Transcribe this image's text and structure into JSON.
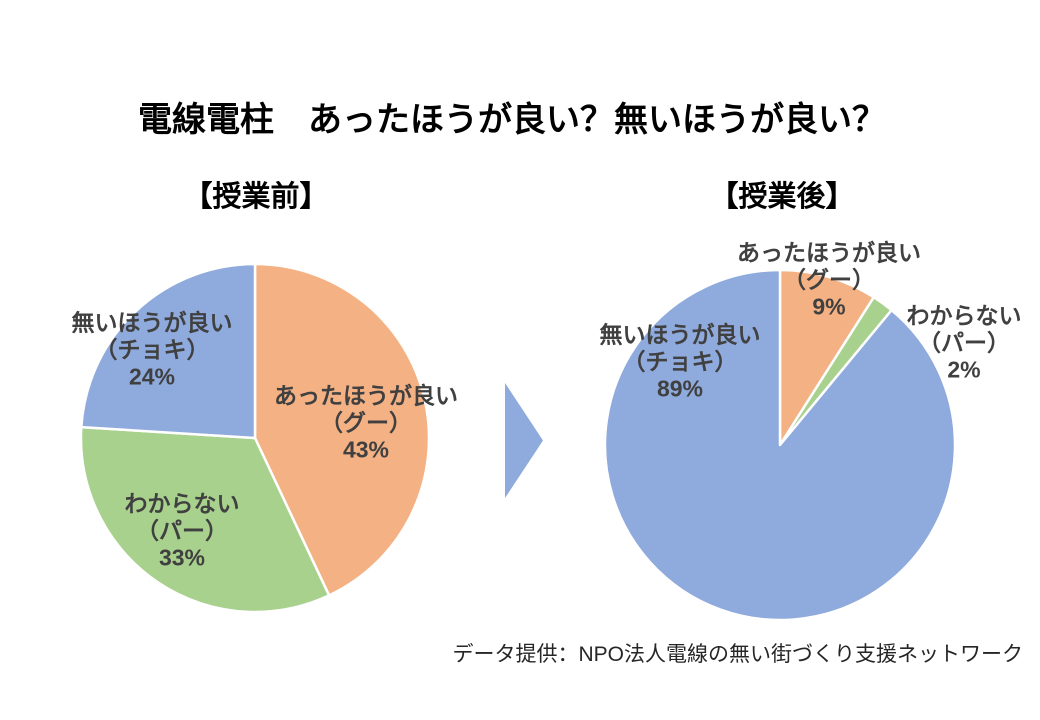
{
  "title": "電線電柱　あったほうが良い？無いほうが良い？",
  "source": "データ提供：NPO法人電線の無い街づくり支援ネットワーク",
  "arrow": {
    "color": "#8FAADC"
  },
  "chart_data": [
    {
      "type": "pie",
      "title": "【授業前】",
      "categories": [
        "あったほうが良い（グー）",
        "わからない（パー）",
        "無いほうが良い（チョキ）"
      ],
      "values": [
        43,
        33,
        24
      ],
      "unit": "%",
      "colors": [
        "#F4B183",
        "#A9D18E",
        "#8FAADC"
      ],
      "start_angle_deg": 0,
      "direction": "clockwise",
      "legend": "none",
      "labels": [
        {
          "lines": [
            "あったほうが良い",
            "（グー）",
            "43%"
          ]
        },
        {
          "lines": [
            "わからない",
            "（パー）",
            "33%"
          ]
        },
        {
          "lines": [
            "無いほうが良い",
            "（チョキ）",
            "24%"
          ]
        }
      ]
    },
    {
      "type": "pie",
      "title": "【授業後】",
      "categories": [
        "あったほうが良い（グー）",
        "わからない（パー）",
        "無いほうが良い（チョキ）"
      ],
      "values": [
        9,
        2,
        89
      ],
      "unit": "%",
      "colors": [
        "#F4B183",
        "#A9D18E",
        "#8FAADC"
      ],
      "start_angle_deg": 0,
      "direction": "clockwise",
      "legend": "none",
      "labels": [
        {
          "lines": [
            "あったほうが良い",
            "（グー）",
            "9%"
          ]
        },
        {
          "lines": [
            "わからない",
            "（パー）",
            "2%"
          ]
        },
        {
          "lines": [
            "無いほうが良い",
            "（チョキ）",
            "89%"
          ]
        }
      ]
    }
  ]
}
